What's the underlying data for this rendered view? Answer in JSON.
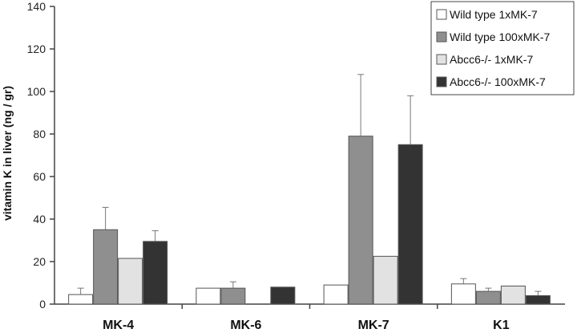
{
  "chart_data": {
    "type": "bar",
    "title": "",
    "xlabel": "",
    "ylabel": "vitamin K in liver (ng / gr)",
    "ylim": [
      0,
      140
    ],
    "yticks": [
      0,
      20,
      40,
      60,
      80,
      100,
      120,
      140
    ],
    "grid": false,
    "legend_position": "top-right",
    "categories": [
      "MK-4",
      "MK-6",
      "MK-7",
      "K1"
    ],
    "series": [
      {
        "name": "Wild type 1xMK-7",
        "color": "#ffffff",
        "values": [
          4.5,
          7.5,
          9,
          9.5
        ],
        "errors": [
          3,
          0,
          0,
          2.5
        ]
      },
      {
        "name": "Wild type 100xMK-7",
        "color": "#8f8f8f",
        "values": [
          35,
          7.5,
          79,
          6
        ],
        "errors": [
          10.5,
          3,
          29,
          1.5
        ]
      },
      {
        "name": "Abcc6-/-  1xMK-7",
        "color": "#e2e2e2",
        "values": [
          21.5,
          0,
          22.5,
          8.5
        ],
        "errors": [
          0,
          0,
          0,
          0
        ]
      },
      {
        "name": "Abcc6-/-  100xMK-7",
        "color": "#333333",
        "values": [
          29.5,
          8,
          75,
          4
        ],
        "errors": [
          5,
          0,
          23,
          2
        ]
      }
    ]
  }
}
